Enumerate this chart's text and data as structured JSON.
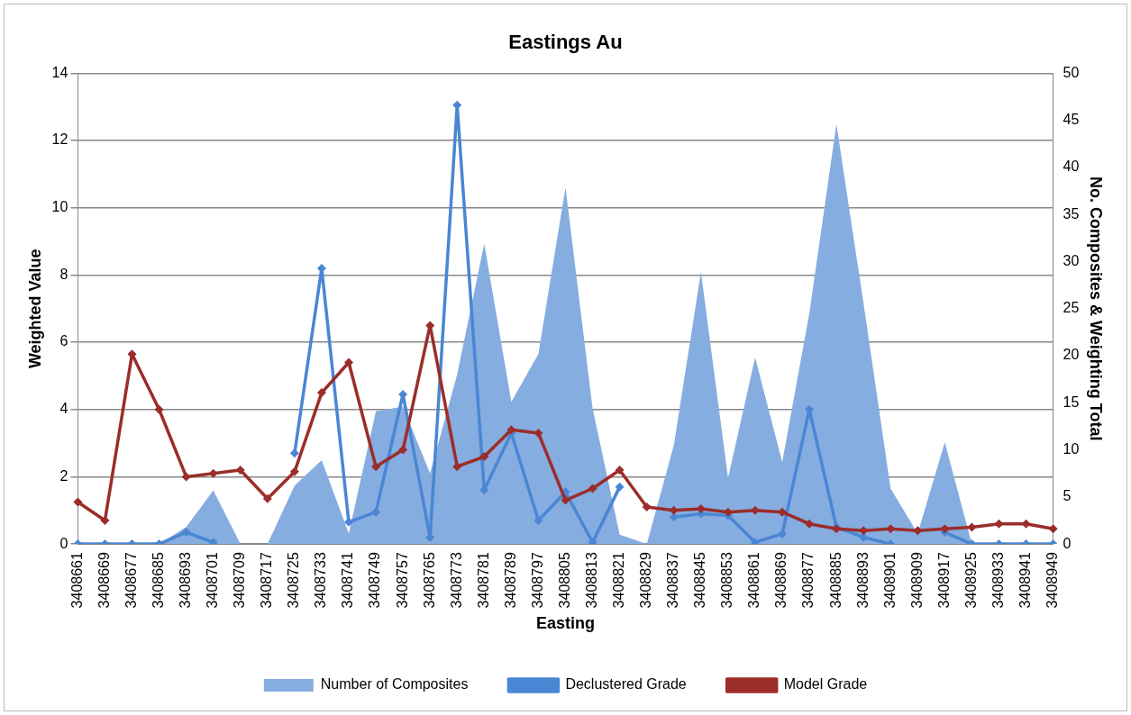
{
  "chart_data": {
    "type": "line",
    "title": "Eastings Au",
    "xlabel": "Easting",
    "ylabel": "Weighted Value",
    "y2label": "No. Composites & Weighting Total",
    "categories": [
      "3408661",
      "3408669",
      "3408677",
      "3408685",
      "3408693",
      "3408701",
      "3408709",
      "3408717",
      "3408725",
      "3408733",
      "3408741",
      "3408749",
      "3408757",
      "3408765",
      "3408773",
      "3408781",
      "3408789",
      "3408797",
      "3408805",
      "3408813",
      "3408821",
      "3408829",
      "3408837",
      "3408845",
      "3408853",
      "3408861",
      "3408869",
      "3408877",
      "3408885",
      "3408893",
      "3408901",
      "3408909",
      "3408917",
      "3408925",
      "3408933",
      "3408941",
      "3408949"
    ],
    "series": [
      {
        "name": "Number of Composites",
        "type": "area",
        "axis": "y2",
        "color": "#86ade0",
        "values": [
          0,
          0,
          0,
          0,
          1.8,
          5.7,
          0,
          0,
          6.2,
          8.9,
          1.1,
          14.1,
          14.6,
          7.5,
          18,
          31.9,
          15.1,
          20.2,
          37.9,
          14.4,
          1,
          0,
          10.5,
          28.9,
          7,
          19.8,
          8.7,
          24.5,
          44.6,
          25.6,
          5.9,
          1.1,
          10.8,
          0,
          0,
          0,
          0
        ]
      },
      {
        "name": "Declustered Grade",
        "marker": "diamond",
        "color": "#4a86d4",
        "values": [
          0,
          0,
          0,
          0,
          0.35,
          0.05,
          null,
          null,
          2.7,
          8.2,
          0.65,
          0.95,
          4.45,
          0.2,
          13.05,
          1.6,
          3.3,
          0.7,
          1.55,
          0.05,
          1.7,
          null,
          0.8,
          0.9,
          0.85,
          0.05,
          0.3,
          4.0,
          0.5,
          0.2,
          0,
          null,
          0.35,
          0,
          0,
          0,
          0
        ]
      },
      {
        "name": "Model Grade",
        "marker": "diamond",
        "color": "#9b2d2a",
        "values": [
          1.25,
          0.7,
          5.65,
          4.0,
          2.0,
          2.1,
          2.2,
          1.35,
          2.15,
          4.5,
          5.4,
          2.3,
          2.8,
          6.5,
          2.3,
          2.6,
          3.4,
          3.3,
          1.3,
          1.65,
          2.2,
          1.1,
          1.0,
          1.05,
          0.95,
          1.0,
          0.95,
          0.6,
          0.45,
          0.4,
          0.45,
          0.4,
          0.45,
          0.5,
          0.6,
          0.6,
          0.45
        ]
      }
    ],
    "ylim": [
      0,
      14
    ],
    "yticks": [
      0,
      2,
      4,
      6,
      8,
      10,
      12,
      14
    ],
    "y2lim": [
      0,
      50
    ],
    "y2ticks": [
      0,
      5,
      10,
      15,
      20,
      25,
      30,
      35,
      40,
      45,
      50
    ],
    "grid": "y",
    "legend": "bottom"
  }
}
